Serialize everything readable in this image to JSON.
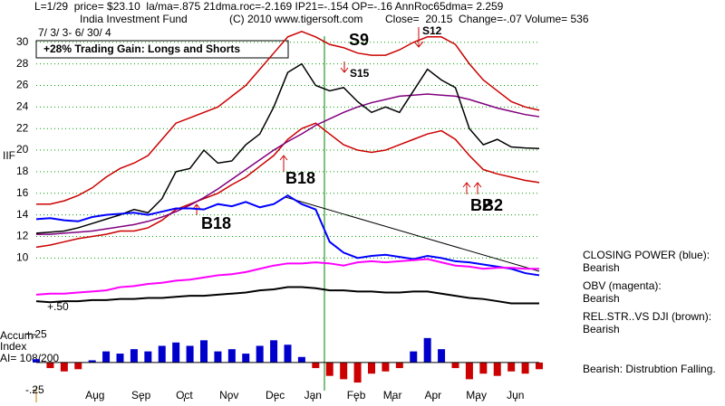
{
  "header": {
    "stats": "L=1/29  price= $23.10  la/ma=.875 21dma.roc=-2.169 IP21=-.154 OP=-.16 AnnRoc65dma= 2.259",
    "fund": "India Investment Fund",
    "copyright": "(C) 2010 www.tigersoft.com",
    "close": "Close=  20.15  Change=-.07 Volume= 536",
    "dates": "7/ 3/ 3- 6/ 30/ 4",
    "gain": "+28% Trading Gain: Longs and Shorts"
  },
  "chart_data": [
    {
      "type": "line",
      "ylabel": "IIF",
      "grid": true,
      "grid_color": "#00a000",
      "xlim": [
        0,
        36
      ],
      "ylim": [
        5,
        33.5
      ],
      "yticks": [
        10,
        12,
        14,
        16,
        18,
        20,
        22,
        24,
        26,
        28,
        30
      ],
      "x": [
        0,
        1,
        2,
        3,
        4,
        5,
        6,
        7,
        8,
        9,
        10,
        11,
        12,
        13,
        14,
        15,
        16,
        17,
        18,
        19,
        20,
        21,
        22,
        23,
        24,
        25,
        26,
        27,
        28,
        29,
        30,
        31,
        32,
        33,
        34,
        35,
        36
      ],
      "series": [
        {
          "color": "#cc0000",
          "values": [
            15,
            15,
            15.3,
            15.8,
            16.5,
            17.5,
            18.3,
            18.8,
            19.5,
            21,
            22.5,
            23,
            23.5,
            24,
            25,
            26,
            27.5,
            29,
            30.5,
            31,
            30.5,
            29.8,
            29.5,
            29,
            28.8,
            28.8,
            29.3,
            30,
            30.5,
            30.5,
            29.8,
            28,
            26.5,
            25.5,
            24.5,
            24,
            23.7
          ]
        },
        {
          "color": "#cc0000",
          "values": [
            11,
            11.2,
            11.5,
            11.8,
            12,
            12.2,
            12.5,
            12.5,
            12.8,
            13.5,
            14.5,
            15,
            15.5,
            16,
            16.8,
            17.5,
            18.5,
            19.5,
            21,
            22,
            22.5,
            21.5,
            20.5,
            20,
            19.8,
            20,
            20.5,
            21,
            21.5,
            21.8,
            21,
            19.5,
            18.2,
            17.8,
            17.5,
            17.2,
            17
          ]
        },
        {
          "color": "#800080",
          "values": [
            12.2,
            12.2,
            12.3,
            12.4,
            12.5,
            12.7,
            12.9,
            13.1,
            13.4,
            13.8,
            14.3,
            14.9,
            15.6,
            16.4,
            17.3,
            18.2,
            19.1,
            20,
            20.8,
            21.5,
            22.3,
            22.9,
            23.5,
            24,
            24.4,
            24.7,
            25,
            25.1,
            25.2,
            25.1,
            25,
            24.7,
            24.3,
            23.9,
            23.6,
            23.3,
            23.1
          ]
        },
        {
          "color": "#000000",
          "values": [
            12.3,
            12.4,
            12.5,
            12.8,
            13.2,
            13.6,
            14,
            14.5,
            14.2,
            15.5,
            18,
            18.3,
            20,
            18.8,
            19,
            20.5,
            21.5,
            24,
            27.2,
            28,
            26,
            25.5,
            25.8,
            24.5,
            23.5,
            24,
            23.5,
            25.5,
            27.5,
            26.5,
            25.8,
            22,
            20.5,
            21,
            20.3,
            20.2,
            20.15
          ]
        },
        {
          "name": "CLOSING POWER (blue):",
          "status": "Bearish",
          "color": "#0000ff",
          "values": [
            13.6,
            13.7,
            13.5,
            13.4,
            13.8,
            14,
            14.1,
            14.2,
            14,
            14.3,
            14.6,
            14.6,
            14.5,
            15,
            14.8,
            15.2,
            14.7,
            15,
            15.8,
            15,
            14.5,
            11.5,
            10.5,
            10,
            10.2,
            10.3,
            10.1,
            9.9,
            10.2,
            10,
            9.7,
            9.6,
            9.4,
            9.2,
            9,
            8.6,
            8.4
          ]
        },
        {
          "name": "OBV (magenta):",
          "status": "Bearish",
          "color": "#ff00ff",
          "values": [
            6.6,
            6.7,
            6.7,
            6.8,
            6.9,
            7,
            7.3,
            7.4,
            7.6,
            7.7,
            7.9,
            8,
            8.2,
            8.4,
            8.5,
            8.7,
            9,
            9.3,
            9.5,
            9.5,
            9.6,
            9.5,
            9.3,
            9.6,
            9.7,
            9.6,
            9.7,
            9.8,
            9.9,
            9.6,
            9.3,
            9.2,
            9,
            9.1,
            9.1,
            9,
            9
          ]
        },
        {
          "name": "REL.STR..VS DJI (brown):",
          "status": "Bearish",
          "color": "#000000",
          "values": [
            6,
            5.9,
            6,
            6,
            6.1,
            6.1,
            6.2,
            6.2,
            6.3,
            6.3,
            6.4,
            6.5,
            6.5,
            6.6,
            6.7,
            6.8,
            7,
            7.1,
            7.3,
            7.3,
            7.2,
            7,
            7,
            6.9,
            6.9,
            6.8,
            6.8,
            6.9,
            6.9,
            6.7,
            6.5,
            6.3,
            6.2,
            6,
            5.8,
            5.8,
            5.8
          ]
        }
      ],
      "annotations": [
        "S9",
        "S12",
        "S15",
        "B18",
        "B18",
        "B2",
        "B2",
        "+.50"
      ]
    },
    {
      "type": "bar",
      "title": "Accum",
      "subtitle": "Index",
      "ylabel": "AI= 108/200",
      "note": "Bearish: Distrubtion Falling.",
      "color": "#0000cc",
      "negative_color": "#cc0000",
      "xlim": [
        0,
        36
      ],
      "ylim": [
        -0.35,
        0.3
      ],
      "yticks": [
        {
          "value": 0.25,
          "label": "+.25"
        },
        {
          "value": -0.25,
          "label": "-.25"
        }
      ],
      "xticks": [
        {
          "value": 4.2,
          "label": "Aug"
        },
        {
          "value": 7.5,
          "label": "Sep"
        },
        {
          "value": 10.6,
          "label": "Oct"
        },
        {
          "value": 13.8,
          "label": "Nov"
        },
        {
          "value": 17.1,
          "label": "Dec"
        },
        {
          "value": 19.8,
          "label": "Jan"
        },
        {
          "value": 22.9,
          "label": "Feb"
        },
        {
          "value": 25.5,
          "label": "Mar"
        },
        {
          "value": 28.4,
          "label": "Apr"
        },
        {
          "value": 31.5,
          "label": "May"
        },
        {
          "value": 34.3,
          "label": "Jun"
        }
      ],
      "x": [
        0,
        1,
        2,
        3,
        4,
        5,
        6,
        7,
        8,
        9,
        10,
        11,
        12,
        13,
        14,
        15,
        16,
        17,
        18,
        19,
        20,
        21,
        22,
        23,
        24,
        25,
        26,
        27,
        28,
        29,
        30,
        31,
        32,
        33,
        34,
        35,
        36
      ],
      "values": [
        0.03,
        -0.05,
        -0.08,
        -0.06,
        0.02,
        0.1,
        0.08,
        0.12,
        0.1,
        0.15,
        0.18,
        0.15,
        0.2,
        0.1,
        0.12,
        0.08,
        0.15,
        0.2,
        0.16,
        0.05,
        -0.05,
        -0.12,
        -0.15,
        -0.18,
        -0.1,
        -0.08,
        -0.05,
        0.1,
        0.22,
        0.12,
        -0.05,
        -0.15,
        -0.1,
        -0.12,
        -0.08,
        -0.1,
        -0.06
      ]
    }
  ]
}
